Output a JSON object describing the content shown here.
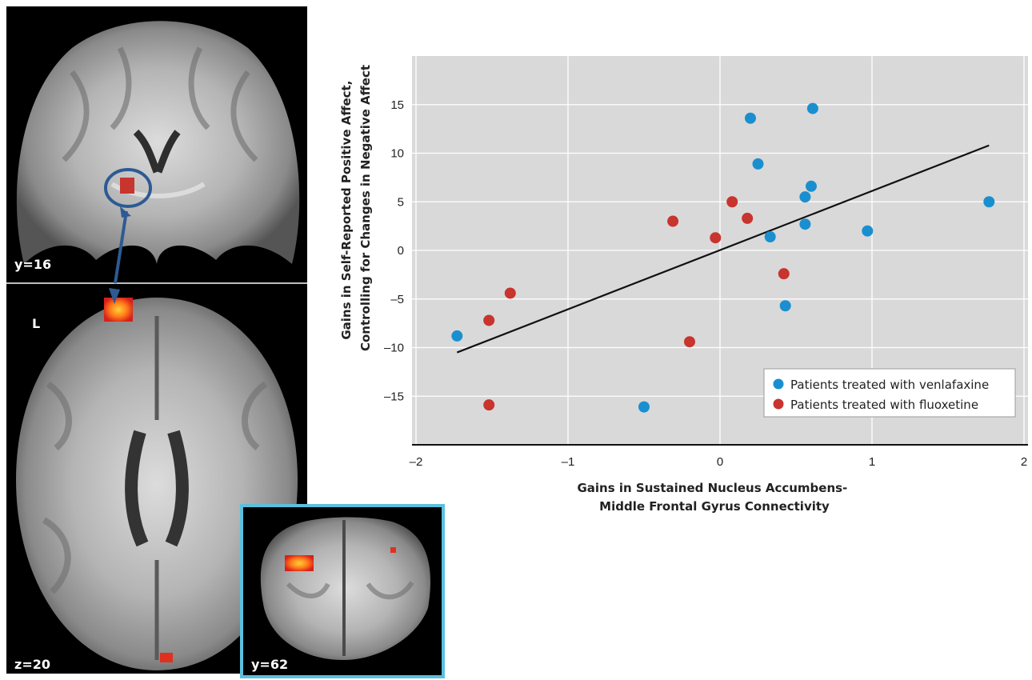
{
  "brain_images": {
    "coronal_top_label": "y=16",
    "hemisphere_label": "L",
    "axial_label": "z=20",
    "inset_label": "y=62"
  },
  "colors": {
    "venlafaxine": "#1a8fd0",
    "fluoxetine": "#c8342e",
    "plot_bg": "#d9d9d9",
    "inset_border": "#5bc0de"
  },
  "chart_data": {
    "type": "scatter",
    "xlabel": [
      "Gains in Sustained Nucleus Accumbens-",
      "Middle Frontal Gyrus Connectivity"
    ],
    "ylabel": [
      "Gains in Self-Reported Positive Affect,",
      "Controlling for Changes in Negative Affect"
    ],
    "xlim": [
      -2,
      2
    ],
    "ylim": [
      -20,
      20
    ],
    "xticks": [
      -2,
      -1,
      0,
      1,
      2
    ],
    "xtick_labels": [
      "–2",
      "–1",
      "0",
      "1",
      "2"
    ],
    "yticks": [
      15,
      10,
      5,
      0,
      -5,
      -10,
      -15
    ],
    "ytick_labels": [
      "15",
      "10",
      "5",
      "0",
      "–5",
      "–10",
      "–15"
    ],
    "grid": true,
    "legend_position": "bottom-right",
    "series": [
      {
        "name": "Patients treated with venlafaxine",
        "points": [
          [
            -1.73,
            -8.8
          ],
          [
            -0.5,
            -16.1
          ],
          [
            0.2,
            13.6
          ],
          [
            0.25,
            8.9
          ],
          [
            0.33,
            1.4
          ],
          [
            0.43,
            -5.7
          ],
          [
            0.56,
            5.5
          ],
          [
            0.56,
            2.7
          ],
          [
            0.6,
            6.6
          ],
          [
            0.61,
            14.6
          ],
          [
            0.97,
            2.0
          ],
          [
            1.77,
            5.0
          ]
        ]
      },
      {
        "name": "Patients treated with fluoxetine",
        "points": [
          [
            -1.52,
            -7.2
          ],
          [
            -1.52,
            -15.9
          ],
          [
            -1.38,
            -4.4
          ],
          [
            -0.31,
            3.0
          ],
          [
            -0.2,
            -9.4
          ],
          [
            -0.03,
            1.3
          ],
          [
            0.08,
            5.0
          ],
          [
            0.18,
            3.3
          ],
          [
            0.42,
            -2.4
          ]
        ]
      }
    ],
    "fit_line": [
      [
        -1.73,
        -10.5
      ],
      [
        1.77,
        10.8
      ]
    ]
  }
}
